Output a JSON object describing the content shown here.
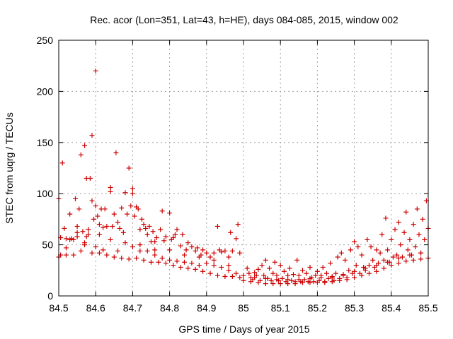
{
  "colors": {
    "marker": "#cc0000",
    "axis": "#000000",
    "grid": "#a0a0a0",
    "background": "#ffffff"
  },
  "chart_data": {
    "type": "scatter",
    "title": "Rec. acor (Lon=351, Lat=43, h=HE), days 084-085, 2015, window 002",
    "xlabel": "GPS time / Days of year 2015",
    "ylabel": "STEC from uqrg / TECUs",
    "xlim": [
      84.5,
      85.5
    ],
    "ylim": [
      0,
      250
    ],
    "grid": true,
    "marker": "plus",
    "xticks": [
      84.5,
      84.6,
      84.7,
      84.8,
      84.9,
      85,
      85.1,
      85.2,
      85.3,
      85.4,
      85.5
    ],
    "xtick_labels": [
      "84.5",
      "84.6",
      "84.7",
      "84.8",
      "84.9",
      "85",
      "85.1",
      "85.2",
      "85.3",
      "85.4",
      "85.5"
    ],
    "yticks": [
      0,
      50,
      100,
      150,
      200,
      250
    ],
    "ytick_labels": [
      "0",
      "50",
      "100",
      "150",
      "200",
      "250"
    ],
    "series": [
      {
        "name": "STEC",
        "points": [
          [
            84.5,
            95
          ],
          [
            84.505,
            57
          ],
          [
            84.51,
            130
          ],
          [
            84.515,
            66
          ],
          [
            84.52,
            47
          ],
          [
            84.52,
            56
          ],
          [
            84.53,
            80
          ],
          [
            84.535,
            56
          ],
          [
            84.54,
            55
          ],
          [
            84.545,
            95
          ],
          [
            84.55,
            68
          ],
          [
            84.555,
            85
          ],
          [
            84.56,
            138
          ],
          [
            84.565,
            63
          ],
          [
            84.57,
            147
          ],
          [
            84.575,
            115
          ],
          [
            84.575,
            58
          ],
          [
            84.58,
            65
          ],
          [
            84.585,
            115
          ],
          [
            84.59,
            157
          ],
          [
            84.59,
            93
          ],
          [
            84.595,
            75
          ],
          [
            84.6,
            220
          ],
          [
            84.6,
            88
          ],
          [
            84.605,
            78
          ],
          [
            84.61,
            70
          ],
          [
            84.615,
            85
          ],
          [
            84.62,
            67
          ],
          [
            84.625,
            85
          ],
          [
            84.63,
            68
          ],
          [
            84.64,
            106
          ],
          [
            84.64,
            102
          ],
          [
            84.645,
            68
          ],
          [
            84.65,
            80
          ],
          [
            84.655,
            140
          ],
          [
            84.66,
            72
          ],
          [
            84.665,
            66
          ],
          [
            84.67,
            86
          ],
          [
            84.675,
            62
          ],
          [
            84.68,
            101
          ],
          [
            84.685,
            80
          ],
          [
            84.69,
            125
          ],
          [
            84.695,
            88
          ],
          [
            84.7,
            105
          ],
          [
            84.7,
            100
          ],
          [
            84.705,
            78
          ],
          [
            84.71,
            87
          ],
          [
            84.715,
            85
          ],
          [
            84.72,
            65
          ],
          [
            84.725,
            75
          ],
          [
            84.73,
            70
          ],
          [
            84.735,
            66
          ],
          [
            84.74,
            60
          ],
          [
            84.745,
            68
          ],
          [
            84.75,
            53
          ],
          [
            84.755,
            63
          ],
          [
            84.76,
            53
          ],
          [
            84.765,
            57
          ],
          [
            84.775,
            65
          ],
          [
            84.78,
            83
          ],
          [
            84.785,
            54
          ],
          [
            84.79,
            58
          ],
          [
            84.8,
            81
          ],
          [
            84.805,
            55
          ],
          [
            84.81,
            57
          ],
          [
            84.815,
            60
          ],
          [
            84.82,
            65
          ],
          [
            84.83,
            49
          ],
          [
            84.835,
            60
          ],
          [
            84.845,
            45
          ],
          [
            84.85,
            52
          ],
          [
            84.86,
            48
          ],
          [
            84.87,
            44
          ],
          [
            84.875,
            47
          ],
          [
            84.885,
            40
          ],
          [
            84.89,
            45
          ],
          [
            84.9,
            42
          ],
          [
            84.91,
            38
          ],
          [
            84.92,
            42
          ],
          [
            84.93,
            68
          ],
          [
            84.935,
            45
          ],
          [
            84.94,
            43
          ],
          [
            84.95,
            44
          ],
          [
            84.96,
            38
          ],
          [
            84.965,
            62
          ],
          [
            84.97,
            44
          ],
          [
            84.98,
            56
          ],
          [
            84.985,
            70
          ],
          [
            84.99,
            42
          ],
          [
            84.505,
            40
          ],
          [
            84.52,
            40
          ],
          [
            84.54,
            40
          ],
          [
            84.56,
            44
          ],
          [
            84.57,
            50
          ],
          [
            84.59,
            42
          ],
          [
            84.61,
            42
          ],
          [
            84.63,
            40
          ],
          [
            84.65,
            38
          ],
          [
            84.67,
            37
          ],
          [
            84.69,
            36
          ],
          [
            84.71,
            37
          ],
          [
            84.73,
            35
          ],
          [
            84.75,
            33
          ],
          [
            84.77,
            33
          ],
          [
            84.79,
            32
          ],
          [
            84.81,
            30
          ],
          [
            84.83,
            28
          ],
          [
            84.85,
            27
          ],
          [
            84.87,
            26
          ],
          [
            84.89,
            24
          ],
          [
            84.91,
            22
          ],
          [
            84.93,
            20
          ],
          [
            84.95,
            19
          ],
          [
            84.97,
            19
          ],
          [
            84.99,
            18
          ],
          [
            84.5,
            38
          ],
          [
            84.53,
            55
          ],
          [
            84.55,
            58
          ],
          [
            84.57,
            52
          ],
          [
            84.6,
            48
          ],
          [
            84.62,
            45
          ],
          [
            84.66,
            44
          ],
          [
            84.7,
            48
          ],
          [
            84.72,
            44
          ],
          [
            84.74,
            44
          ],
          [
            84.76,
            40
          ],
          [
            84.78,
            37
          ],
          [
            84.8,
            35
          ],
          [
            84.82,
            34
          ],
          [
            84.84,
            33
          ],
          [
            84.86,
            32
          ],
          [
            84.88,
            30
          ],
          [
            84.9,
            32
          ],
          [
            84.92,
            30
          ],
          [
            84.94,
            28
          ],
          [
            84.96,
            25
          ],
          [
            84.98,
            22
          ],
          [
            84.55,
            62
          ],
          [
            84.58,
            60
          ],
          [
            84.61,
            60
          ],
          [
            84.64,
            55
          ],
          [
            84.68,
            52
          ],
          [
            84.72,
            50
          ],
          [
            84.76,
            45
          ],
          [
            84.8,
            45
          ],
          [
            84.84,
            40
          ],
          [
            84.88,
            38
          ],
          [
            84.92,
            35
          ],
          [
            84.96,
            30
          ],
          [
            85.01,
            27
          ],
          [
            85.015,
            22
          ],
          [
            85.02,
            18
          ],
          [
            85.025,
            16
          ],
          [
            85.03,
            23
          ],
          [
            85.035,
            20
          ],
          [
            85.04,
            26
          ],
          [
            85.045,
            15
          ],
          [
            85.05,
            30
          ],
          [
            85.055,
            20
          ],
          [
            85.06,
            35
          ],
          [
            85.065,
            17
          ],
          [
            85.07,
            27
          ],
          [
            85.075,
            15
          ],
          [
            85.08,
            22
          ],
          [
            85.085,
            33
          ],
          [
            85.09,
            20
          ],
          [
            85.095,
            15
          ],
          [
            85.1,
            30
          ],
          [
            85.105,
            17
          ],
          [
            85.11,
            24
          ],
          [
            85.115,
            14
          ],
          [
            85.12,
            20
          ],
          [
            85.125,
            27
          ],
          [
            85.13,
            15
          ],
          [
            85.135,
            21
          ],
          [
            85.14,
            14
          ],
          [
            85.145,
            35
          ],
          [
            85.15,
            20
          ],
          [
            85.155,
            14
          ],
          [
            85.16,
            25
          ],
          [
            85.165,
            16
          ],
          [
            85.17,
            22
          ],
          [
            85.175,
            14
          ],
          [
            85.18,
            28
          ],
          [
            85.185,
            18
          ],
          [
            85.19,
            14
          ],
          [
            85.195,
            20
          ],
          [
            85.2,
            24
          ],
          [
            85.205,
            15
          ],
          [
            85.21,
            20
          ],
          [
            85.215,
            28
          ],
          [
            85.22,
            14
          ],
          [
            85.225,
            22
          ],
          [
            85.23,
            17
          ],
          [
            85.235,
            32
          ],
          [
            85.24,
            18
          ],
          [
            85.245,
            15
          ],
          [
            85.25,
            22
          ],
          [
            85.255,
            38
          ],
          [
            85.26,
            17
          ],
          [
            85.265,
            42
          ],
          [
            85.27,
            20
          ],
          [
            85.275,
            35
          ],
          [
            85.28,
            18
          ],
          [
            85.285,
            25
          ],
          [
            85.29,
            45
          ],
          [
            85.295,
            22
          ],
          [
            85.3,
            53
          ],
          [
            85.305,
            30
          ],
          [
            85.31,
            48
          ],
          [
            85.315,
            22
          ],
          [
            85.32,
            40
          ],
          [
            85.325,
            28
          ],
          [
            85.33,
            25
          ],
          [
            85.335,
            55
          ],
          [
            85.34,
            30
          ],
          [
            85.345,
            48
          ],
          [
            85.35,
            35
          ],
          [
            85.355,
            28
          ],
          [
            85.36,
            45
          ],
          [
            85.365,
            32
          ],
          [
            85.37,
            42
          ],
          [
            85.375,
            60
          ],
          [
            85.38,
            35
          ],
          [
            85.385,
            76
          ],
          [
            85.39,
            45
          ],
          [
            85.395,
            33
          ],
          [
            85.4,
            55
          ],
          [
            85.405,
            38
          ],
          [
            85.41,
            65
          ],
          [
            85.415,
            40
          ],
          [
            85.42,
            72
          ],
          [
            85.425,
            50
          ],
          [
            85.43,
            38
          ],
          [
            85.435,
            62
          ],
          [
            85.44,
            82
          ],
          [
            85.445,
            45
          ],
          [
            85.45,
            55
          ],
          [
            85.455,
            40
          ],
          [
            85.46,
            70
          ],
          [
            85.465,
            48
          ],
          [
            85.47,
            85
          ],
          [
            85.475,
            60
          ],
          [
            85.48,
            42
          ],
          [
            85.485,
            75
          ],
          [
            85.49,
            55
          ],
          [
            85.495,
            93
          ],
          [
            85.5,
            66
          ],
          [
            85.0,
            15
          ],
          [
            85.02,
            14
          ],
          [
            85.04,
            13
          ],
          [
            85.06,
            12
          ],
          [
            85.08,
            12
          ],
          [
            85.1,
            12
          ],
          [
            85.12,
            12
          ],
          [
            85.14,
            12
          ],
          [
            85.16,
            13
          ],
          [
            85.18,
            13
          ],
          [
            85.2,
            13
          ],
          [
            85.22,
            13
          ],
          [
            85.24,
            14
          ],
          [
            85.26,
            15
          ],
          [
            85.28,
            16
          ],
          [
            85.3,
            18
          ],
          [
            85.32,
            20
          ],
          [
            85.34,
            22
          ],
          [
            85.36,
            24
          ],
          [
            85.38,
            27
          ],
          [
            85.4,
            30
          ],
          [
            85.42,
            32
          ],
          [
            85.44,
            34
          ],
          [
            85.46,
            35
          ],
          [
            85.48,
            36
          ],
          [
            85.5,
            37
          ],
          [
            85.0,
            20
          ],
          [
            85.03,
            18
          ],
          [
            85.06,
            17
          ],
          [
            85.09,
            16
          ],
          [
            85.12,
            16
          ],
          [
            85.15,
            16
          ],
          [
            85.18,
            17
          ],
          [
            85.21,
            18
          ],
          [
            85.24,
            19
          ],
          [
            85.27,
            21
          ],
          [
            85.3,
            24
          ],
          [
            85.33,
            27
          ],
          [
            85.36,
            30
          ],
          [
            85.39,
            33
          ],
          [
            85.42,
            37
          ],
          [
            85.45,
            40
          ],
          [
            85.48,
            42
          ]
        ]
      }
    ]
  }
}
